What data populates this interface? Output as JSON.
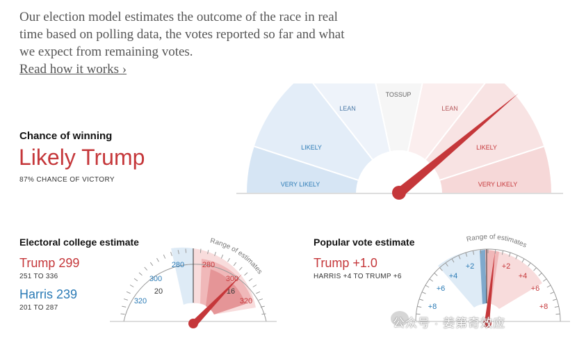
{
  "intro": {
    "text": "Our election model estimates the outcome of the race in real time based on polling data, the votes reported so far and what we expect from remaining votes.",
    "link": "Read how it works ›"
  },
  "chance": {
    "label": "Chance of winning",
    "value": "Likely Trump",
    "pct": "87% CHANCE OF VICTORY",
    "value_fraction": 0.87,
    "segments": [
      "VERY LIKELY",
      "LIKELY",
      "LEAN",
      "TOSSUP",
      "LEAN",
      "LIKELY",
      "VERY LIKELY"
    ]
  },
  "electoral": {
    "title": "Electoral college estimate",
    "trump": "Trump 299",
    "trump_range": "251 TO 336",
    "harris": "Harris 239",
    "harris_range": "201 TO 287",
    "range_label": "Range of estimates",
    "ticks": [
      "280",
      "300",
      "320",
      "300",
      "320"
    ],
    "marker_20": "20",
    "marker_16": "16"
  },
  "popular": {
    "title": "Popular vote estimate",
    "trump": "Trump +1.0",
    "range": "HARRIS +4 TO TRUMP +6",
    "range_label": "Range of estimates",
    "ticks_left": [
      "+2",
      "+4",
      "+6",
      "+8"
    ],
    "ticks_right": [
      "+2",
      "+4",
      "+6",
      "+8"
    ]
  },
  "watermark": "公众号 · 姜第奇效应",
  "colors": {
    "red": "#c5373a",
    "blue": "#2a7ab5"
  }
}
